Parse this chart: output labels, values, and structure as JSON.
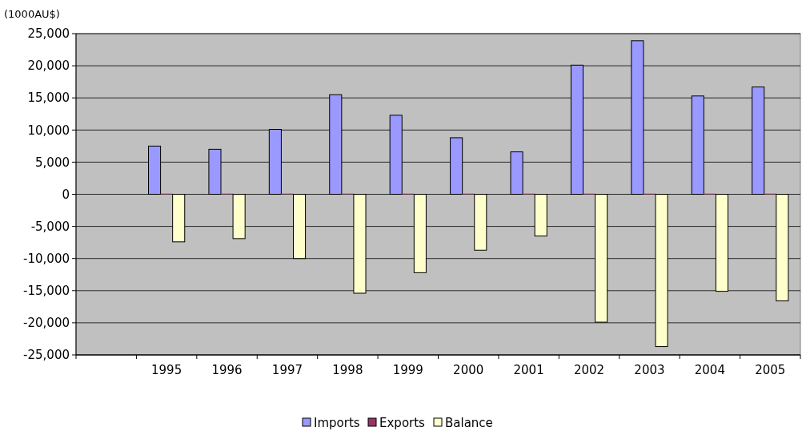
{
  "chart_data": {
    "type": "bar",
    "ylabel": "(1000AU$)",
    "categories": [
      null,
      "1995",
      "1996",
      "1997",
      "1998",
      "1999",
      "2000",
      "2001",
      "2002",
      "2003",
      "2004",
      "2005"
    ],
    "series": [
      {
        "name": "Imports",
        "color": "#9999ff",
        "values": [
          null,
          7500,
          7000,
          10100,
          15500,
          12300,
          8800,
          6600,
          20100,
          23900,
          15300,
          16700
        ]
      },
      {
        "name": "Exports",
        "color": "#993366",
        "values": [
          null,
          100,
          100,
          100,
          100,
          100,
          100,
          100,
          100,
          100,
          100,
          100
        ]
      },
      {
        "name": "Balance",
        "color": "#ffffcc",
        "values": [
          null,
          -7400,
          -6900,
          -10000,
          -15400,
          -12200,
          -8700,
          -6500,
          -19900,
          -23700,
          -15100,
          -16600
        ]
      }
    ],
    "ylim": [
      -25000,
      25000
    ],
    "yticks": [
      {
        "value": -25000,
        "label": "-25,000"
      },
      {
        "value": -20000,
        "label": "-20,000"
      },
      {
        "value": -15000,
        "label": "-15,000"
      },
      {
        "value": -10000,
        "label": "-10,000"
      },
      {
        "value": -5000,
        "label": "-5,000"
      },
      0,
      {
        "value": 5000,
        "label": "5,000"
      },
      {
        "value": 10000,
        "label": "10,000"
      },
      {
        "value": 15000,
        "label": "15,000"
      },
      {
        "value": 20000,
        "label": "20,000"
      },
      {
        "value": 25000,
        "label": "25,000"
      }
    ],
    "grid": "y",
    "legend": "bottom"
  }
}
